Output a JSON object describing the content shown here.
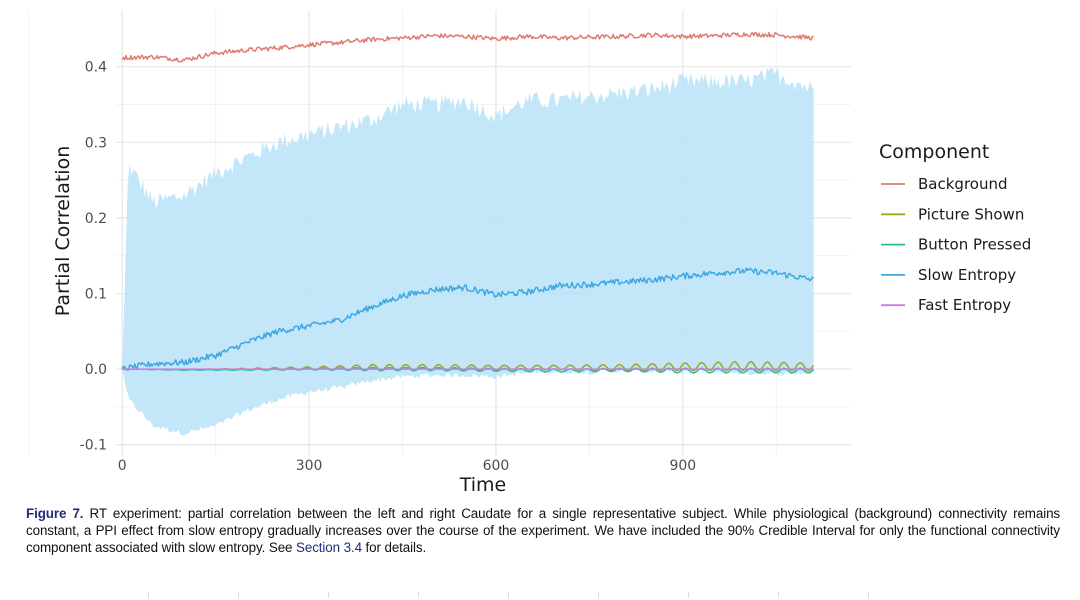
{
  "chart_data": {
    "type": "line",
    "title": "",
    "xlabel": "Time",
    "ylabel": "Partial Correlation",
    "xlim": [
      -10,
      1170
    ],
    "ylim": [
      -0.115,
      0.475
    ],
    "x_ticks": [
      0,
      300,
      600,
      900
    ],
    "y_ticks": [
      -0.1,
      0.0,
      0.1,
      0.2,
      0.3,
      0.4
    ],
    "y_tick_labels": [
      "-0.1",
      "0.0",
      "0.1",
      "0.2",
      "0.3",
      "0.4"
    ],
    "legend": {
      "title": "Component",
      "placement": "right"
    },
    "series": [
      {
        "name": "Background",
        "color": "#E07B72",
        "x": [
          0,
          50,
          100,
          150,
          200,
          250,
          300,
          350,
          400,
          450,
          500,
          550,
          600,
          650,
          700,
          750,
          800,
          850,
          900,
          950,
          1000,
          1050,
          1110
        ],
        "values": [
          0.412,
          0.413,
          0.409,
          0.418,
          0.422,
          0.425,
          0.429,
          0.432,
          0.436,
          0.438,
          0.441,
          0.44,
          0.437,
          0.44,
          0.438,
          0.439,
          0.44,
          0.442,
          0.44,
          0.441,
          0.443,
          0.442,
          0.438
        ],
        "noise": 0.003
      },
      {
        "name": "Picture Shown",
        "color": "#A3A520",
        "x": [
          0,
          100,
          200,
          300,
          400,
          500,
          600,
          700,
          800,
          900,
          1000,
          1110
        ],
        "values": [
          0.0,
          -0.001,
          0.0,
          0.001,
          0.002,
          0.002,
          0.002,
          0.002,
          0.002,
          0.003,
          0.004,
          0.003
        ],
        "oscillation": [
          0.0,
          0.0005,
          0.001,
          0.002,
          0.004,
          0.004,
          0.003,
          0.003,
          0.004,
          0.005,
          0.006,
          0.005
        ]
      },
      {
        "name": "Button Pressed",
        "color": "#2EB89A",
        "x": [
          0,
          100,
          200,
          300,
          400,
          500,
          600,
          700,
          800,
          900,
          1000,
          1110
        ],
        "values": [
          0.0,
          -0.001,
          -0.001,
          0.0,
          0.0,
          0.0,
          -0.001,
          -0.002,
          -0.001,
          -0.002,
          -0.002,
          -0.002
        ],
        "oscillation": [
          0.0,
          0.0003,
          0.0005,
          0.001,
          0.002,
          0.002,
          0.002,
          0.002,
          0.002,
          0.003,
          0.003,
          0.003
        ]
      },
      {
        "name": "Slow Entropy",
        "color": "#3FA8E0",
        "x": [
          0,
          50,
          100,
          150,
          200,
          250,
          300,
          350,
          400,
          450,
          500,
          550,
          600,
          650,
          700,
          750,
          800,
          850,
          900,
          950,
          1000,
          1050,
          1110
        ],
        "values": [
          0.0,
          0.007,
          0.009,
          0.018,
          0.035,
          0.05,
          0.057,
          0.065,
          0.082,
          0.097,
          0.105,
          0.108,
          0.098,
          0.102,
          0.11,
          0.112,
          0.115,
          0.118,
          0.123,
          0.127,
          0.13,
          0.127,
          0.118
        ],
        "noise": 0.004
      },
      {
        "name": "Fast Entropy",
        "color": "#D17BE8",
        "x": [
          0,
          1110
        ],
        "values": [
          0.0,
          0.0
        ]
      }
    ],
    "credible_interval": {
      "series": "Slow Entropy",
      "level": "90%",
      "color": "#B8E2F8",
      "x": [
        0,
        10,
        50,
        100,
        150,
        200,
        250,
        300,
        350,
        400,
        450,
        500,
        550,
        600,
        650,
        700,
        750,
        800,
        850,
        900,
        950,
        1000,
        1050,
        1110
      ],
      "upper": [
        0.0,
        0.27,
        0.22,
        0.23,
        0.26,
        0.28,
        0.3,
        0.31,
        0.32,
        0.33,
        0.35,
        0.35,
        0.355,
        0.335,
        0.355,
        0.355,
        0.36,
        0.365,
        0.37,
        0.38,
        0.38,
        0.38,
        0.39,
        0.37
      ],
      "lower": [
        0.0,
        -0.04,
        -0.075,
        -0.085,
        -0.075,
        -0.055,
        -0.04,
        -0.03,
        -0.025,
        -0.015,
        -0.01,
        -0.008,
        -0.008,
        -0.01,
        -0.005,
        -0.003,
        -0.004,
        -0.002,
        -0.003,
        -0.003,
        -0.003,
        -0.005,
        -0.006,
        -0.005
      ],
      "noise": 0.012
    }
  },
  "caption": {
    "label": "Figure 7.",
    "text_before_link": " RT experiment: partial correlation between the left and right Caudate for a single representative subject. While physiological (background) connectivity remains constant, a PPI effect from slow entropy gradually increases over the course of the experiment. We have included the 90% Credible Interval for only the functional connectivity component associated with slow entropy. See ",
    "link_text": "Section 3.4",
    "text_after_link": " for details."
  }
}
